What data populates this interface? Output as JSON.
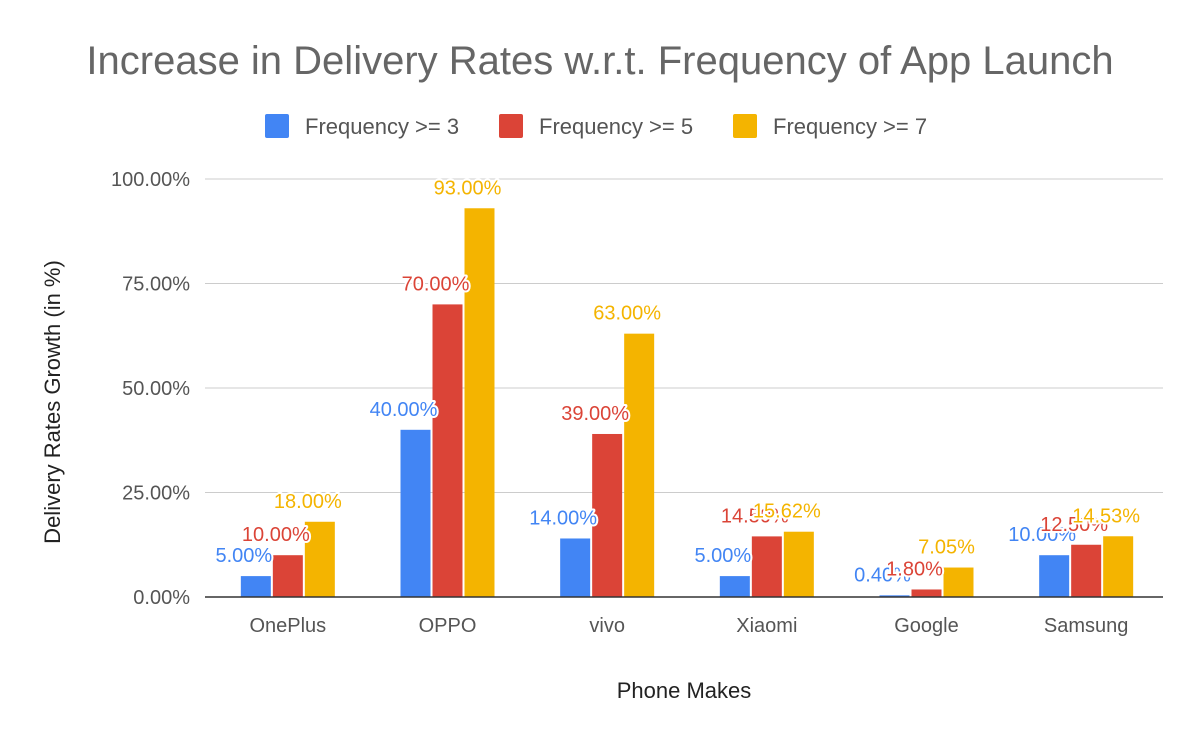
{
  "chart_data": {
    "type": "bar",
    "title": "Increase in Delivery Rates w.r.t. Frequency of App Launch",
    "xlabel": "Phone Makes",
    "ylabel": "Delivery Rates Growth (in %)",
    "categories": [
      "OnePlus",
      "OPPO",
      "vivo",
      "Xiaomi",
      "Google",
      "Samsung"
    ],
    "series": [
      {
        "name": "Frequency >= 3",
        "color": "#4285F4",
        "values": [
          5.0,
          40.0,
          14.0,
          5.0,
          0.4,
          10.0
        ],
        "labels": [
          "5.00%",
          "40.00%",
          "14.00%",
          "5.00%",
          "0.40%",
          "10.00%"
        ]
      },
      {
        "name": "Frequency >= 5",
        "color": "#DB4437",
        "values": [
          10.0,
          70.0,
          39.0,
          14.5,
          1.8,
          12.5
        ],
        "labels": [
          "10.00%",
          "70.00%",
          "39.00%",
          "14.50%",
          "1.80%",
          "12.50%"
        ]
      },
      {
        "name": "Frequency >= 7",
        "color": "#F4B400",
        "values": [
          18.0,
          93.0,
          63.0,
          15.62,
          7.05,
          14.53
        ],
        "labels": [
          "18.00%",
          "93.00%",
          "63.00%",
          "15.62%",
          "7.05%",
          "14.53%"
        ]
      }
    ],
    "yticks": [
      "0.00%",
      "25.00%",
      "50.00%",
      "75.00%",
      "100.00%"
    ],
    "ylim": [
      0,
      100
    ],
    "grid": true,
    "legend_position": "top-center"
  }
}
